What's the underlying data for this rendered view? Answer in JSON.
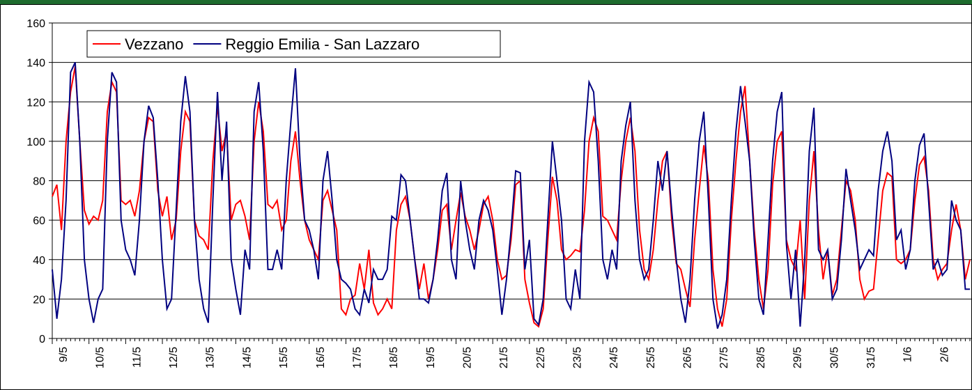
{
  "chart_data": {
    "type": "line",
    "categories": [
      "9/5",
      null,
      null,
      null,
      null,
      null,
      null,
      null,
      "10/5",
      null,
      null,
      null,
      null,
      null,
      null,
      null,
      "11/5",
      null,
      null,
      null,
      null,
      null,
      null,
      null,
      "12/5",
      null,
      null,
      null,
      null,
      null,
      null,
      null,
      "13/5",
      null,
      null,
      null,
      null,
      null,
      null,
      null,
      "14/5",
      null,
      null,
      null,
      null,
      null,
      null,
      null,
      "15/5",
      null,
      null,
      null,
      null,
      null,
      null,
      null,
      "16/5",
      null,
      null,
      null,
      null,
      null,
      null,
      null,
      "17/5",
      null,
      null,
      null,
      null,
      null,
      null,
      null,
      "18/5",
      null,
      null,
      null,
      null,
      null,
      null,
      null,
      "19/5",
      null,
      null,
      null,
      null,
      null,
      null,
      null,
      "20/5",
      null,
      null,
      null,
      null,
      null,
      null,
      null,
      "21/5",
      null,
      null,
      null,
      null,
      null,
      null,
      null,
      "22/5",
      null,
      null,
      null,
      null,
      null,
      null,
      null,
      "23/5",
      null,
      null,
      null,
      null,
      null,
      null,
      null,
      "24/5",
      null,
      null,
      null,
      null,
      null,
      null,
      null,
      "25/5",
      null,
      null,
      null,
      null,
      null,
      null,
      null,
      "26/5",
      null,
      null,
      null,
      null,
      null,
      null,
      null,
      "27/5",
      null,
      null,
      null,
      null,
      null,
      null,
      null,
      "28/5",
      null,
      null,
      null,
      null,
      null,
      null,
      null,
      "29/5",
      null,
      null,
      null,
      null,
      null,
      null,
      null,
      "30/5",
      null,
      null,
      null,
      null,
      null,
      null,
      null,
      "31/5",
      null,
      null,
      null,
      null,
      null,
      null,
      null,
      "1/6",
      null,
      null,
      null,
      null,
      null,
      null,
      null,
      "2/6",
      null,
      null,
      null,
      null,
      null,
      null,
      null,
      null
    ],
    "series": [
      {
        "name": "Vezzano",
        "color": "#ff0000",
        "values": [
          72,
          78,
          55,
          100,
          125,
          138,
          100,
          65,
          58,
          62,
          60,
          70,
          115,
          130,
          125,
          70,
          68,
          70,
          62,
          75,
          100,
          112,
          110,
          75,
          62,
          72,
          50,
          60,
          95,
          115,
          110,
          60,
          52,
          50,
          45,
          90,
          118,
          95,
          105,
          60,
          68,
          70,
          62,
          50,
          100,
          120,
          105,
          68,
          66,
          70,
          55,
          60,
          90,
          105,
          80,
          60,
          50,
          45,
          40,
          70,
          75,
          65,
          55,
          15,
          12,
          20,
          22,
          38,
          25,
          45,
          18,
          12,
          15,
          20,
          15,
          55,
          68,
          72,
          60,
          40,
          25,
          38,
          20,
          30,
          45,
          65,
          68,
          45,
          60,
          74,
          62,
          55,
          45,
          55,
          68,
          72,
          60,
          40,
          30,
          32,
          50,
          78,
          80,
          30,
          18,
          8,
          6,
          15,
          50,
          82,
          70,
          45,
          40,
          42,
          45,
          44,
          65,
          100,
          112,
          105,
          62,
          60,
          55,
          50,
          80,
          100,
          112,
          95,
          55,
          35,
          30,
          45,
          70,
          90,
          95,
          60,
          38,
          35,
          25,
          16,
          50,
          75,
          98,
          80,
          35,
          15,
          6,
          20,
          60,
          90,
          115,
          128,
          90,
          55,
          30,
          15,
          35,
          78,
          100,
          105,
          50,
          40,
          35,
          60,
          20,
          70,
          95,
          55,
          30,
          45,
          22,
          30,
          55,
          80,
          75,
          60,
          30,
          20,
          24,
          25,
          50,
          75,
          84,
          82,
          40,
          38,
          40,
          45,
          70,
          88,
          92,
          75,
          40,
          30,
          35,
          38,
          55,
          68,
          55,
          30,
          40
        ]
      },
      {
        "name": "Reggio Emilia - San Lazzaro",
        "color": "#000080",
        "values": [
          35,
          10,
          30,
          70,
          135,
          140,
          100,
          40,
          20,
          8,
          20,
          25,
          100,
          135,
          130,
          60,
          45,
          40,
          32,
          60,
          100,
          118,
          112,
          80,
          40,
          15,
          20,
          65,
          110,
          133,
          115,
          60,
          30,
          15,
          8,
          70,
          125,
          80,
          110,
          40,
          25,
          12,
          45,
          35,
          115,
          130,
          95,
          35,
          35,
          45,
          35,
          80,
          110,
          137,
          90,
          60,
          55,
          45,
          30,
          80,
          95,
          70,
          40,
          30,
          28,
          25,
          15,
          12,
          25,
          18,
          35,
          30,
          30,
          35,
          62,
          60,
          83,
          80,
          60,
          40,
          20,
          20,
          18,
          30,
          50,
          75,
          84,
          40,
          30,
          80,
          60,
          45,
          35,
          60,
          70,
          65,
          55,
          35,
          12,
          30,
          55,
          85,
          84,
          35,
          50,
          10,
          7,
          20,
          60,
          100,
          80,
          60,
          20,
          15,
          35,
          20,
          100,
          130,
          125,
          90,
          40,
          30,
          45,
          35,
          90,
          108,
          120,
          70,
          40,
          30,
          35,
          60,
          90,
          75,
          95,
          65,
          40,
          20,
          8,
          30,
          70,
          100,
          115,
          70,
          20,
          5,
          12,
          30,
          70,
          105,
          128,
          110,
          90,
          50,
          20,
          12,
          50,
          90,
          115,
          125,
          48,
          20,
          45,
          6,
          40,
          95,
          117,
          45,
          40,
          45,
          20,
          25,
          50,
          86,
          70,
          55,
          35,
          40,
          45,
          42,
          75,
          95,
          105,
          90,
          50,
          55,
          35,
          45,
          80,
          98,
          104,
          70,
          35,
          40,
          32,
          35,
          70,
          60,
          55,
          25,
          25
        ]
      }
    ],
    "ylim": [
      0,
      160
    ],
    "yticks": [
      0,
      20,
      40,
      60,
      80,
      100,
      120,
      140,
      160
    ],
    "grid": true,
    "legend": "top-left"
  }
}
